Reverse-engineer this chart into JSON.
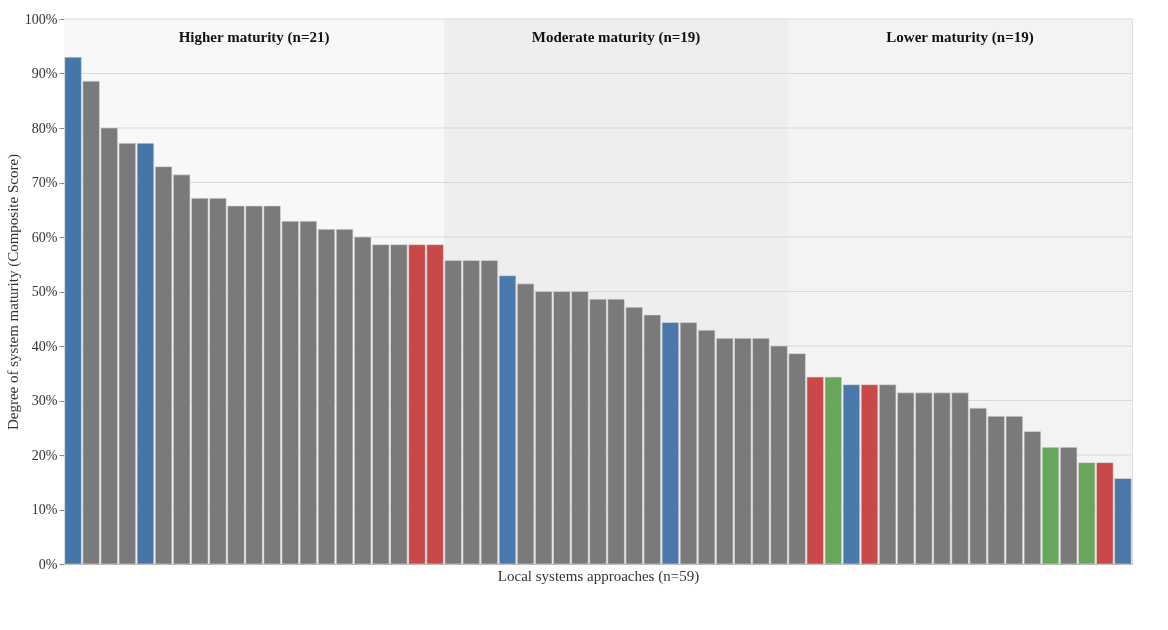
{
  "chart_data": {
    "type": "bar",
    "xlabel": "Local systems approaches (n=59)",
    "ylabel": "Degree of system maturity (Composite Score)",
    "categories": [
      null,
      null,
      null,
      null,
      null,
      null,
      null,
      null,
      null,
      null,
      null,
      null,
      null,
      null,
      null,
      null,
      null,
      null,
      null,
      null,
      null,
      null,
      null,
      null,
      null,
      null,
      null,
      null,
      null,
      null,
      null,
      null,
      null,
      null,
      null,
      null,
      null,
      null,
      null,
      null,
      null,
      null,
      null,
      null,
      null,
      null,
      null,
      null,
      null,
      null,
      null,
      null,
      null,
      null,
      null,
      null,
      null,
      null,
      null
    ],
    "values": [
      93,
      88.6,
      80,
      77.2,
      77.2,
      72.9,
      71.4,
      67.1,
      67.1,
      65.7,
      65.7,
      65.7,
      62.9,
      62.9,
      61.4,
      61.4,
      60,
      58.6,
      58.6,
      58.6,
      58.6,
      55.7,
      55.7,
      55.7,
      52.9,
      51.4,
      50,
      50,
      50,
      48.6,
      48.6,
      47.1,
      45.7,
      44.3,
      44.3,
      42.9,
      41.4,
      41.4,
      41.4,
      40,
      38.6,
      34.3,
      34.3,
      32.9,
      32.9,
      32.9,
      31.4,
      31.4,
      31.4,
      31.4,
      28.6,
      27.1,
      27.1,
      24.3,
      21.4,
      21.4,
      18.6,
      18.6,
      15.7
    ],
    "colors": [
      "#4675a8",
      "#7a7a7a",
      "#7a7a7a",
      "#7a7a7a",
      "#4675a8",
      "#7a7a7a",
      "#7a7a7a",
      "#7a7a7a",
      "#7a7a7a",
      "#7a7a7a",
      "#7a7a7a",
      "#7a7a7a",
      "#7a7a7a",
      "#7a7a7a",
      "#7a7a7a",
      "#7a7a7a",
      "#7a7a7a",
      "#7a7a7a",
      "#7a7a7a",
      "#c9484a",
      "#c9484a",
      "#7a7a7a",
      "#7a7a7a",
      "#7a7a7a",
      "#4a78aa",
      "#7a7a7a",
      "#7a7a7a",
      "#7a7a7a",
      "#7a7a7a",
      "#7a7a7a",
      "#7a7a7a",
      "#7a7a7a",
      "#7a7a7a",
      "#4a78aa",
      "#7a7a7a",
      "#7a7a7a",
      "#7a7a7a",
      "#7a7a7a",
      "#7a7a7a",
      "#7a7a7a",
      "#7a7a7a",
      "#c9484a",
      "#68a65c",
      "#4a78aa",
      "#c9484a",
      "#7a7a7a",
      "#7a7a7a",
      "#7a7a7a",
      "#7a7a7a",
      "#7a7a7a",
      "#7a7a7a",
      "#7a7a7a",
      "#7a7a7a",
      "#7a7a7a",
      "#68a65c",
      "#7a7a7a",
      "#68a65c",
      "#c9484a",
      "#4a78aa"
    ],
    "ylim": [
      0,
      100
    ],
    "yticks": [
      {
        "value": 0,
        "label": "0%"
      },
      {
        "value": 10,
        "label": "10%"
      },
      {
        "value": 20,
        "label": "20%"
      },
      {
        "value": 30,
        "label": "30%"
      },
      {
        "value": 40,
        "label": "40%"
      },
      {
        "value": 50,
        "label": "50%"
      },
      {
        "value": 60,
        "label": "60%"
      },
      {
        "value": 70,
        "label": "70%"
      },
      {
        "value": 80,
        "label": "80%"
      },
      {
        "value": 90,
        "label": "90%"
      },
      {
        "value": 100,
        "label": "100%"
      }
    ],
    "annotations": [
      "Higher maturity (n=21)",
      "Moderate maturity (n=19)",
      "Lower maturity (n=19)"
    ],
    "grid": "y",
    "tick_labels": "y"
  }
}
